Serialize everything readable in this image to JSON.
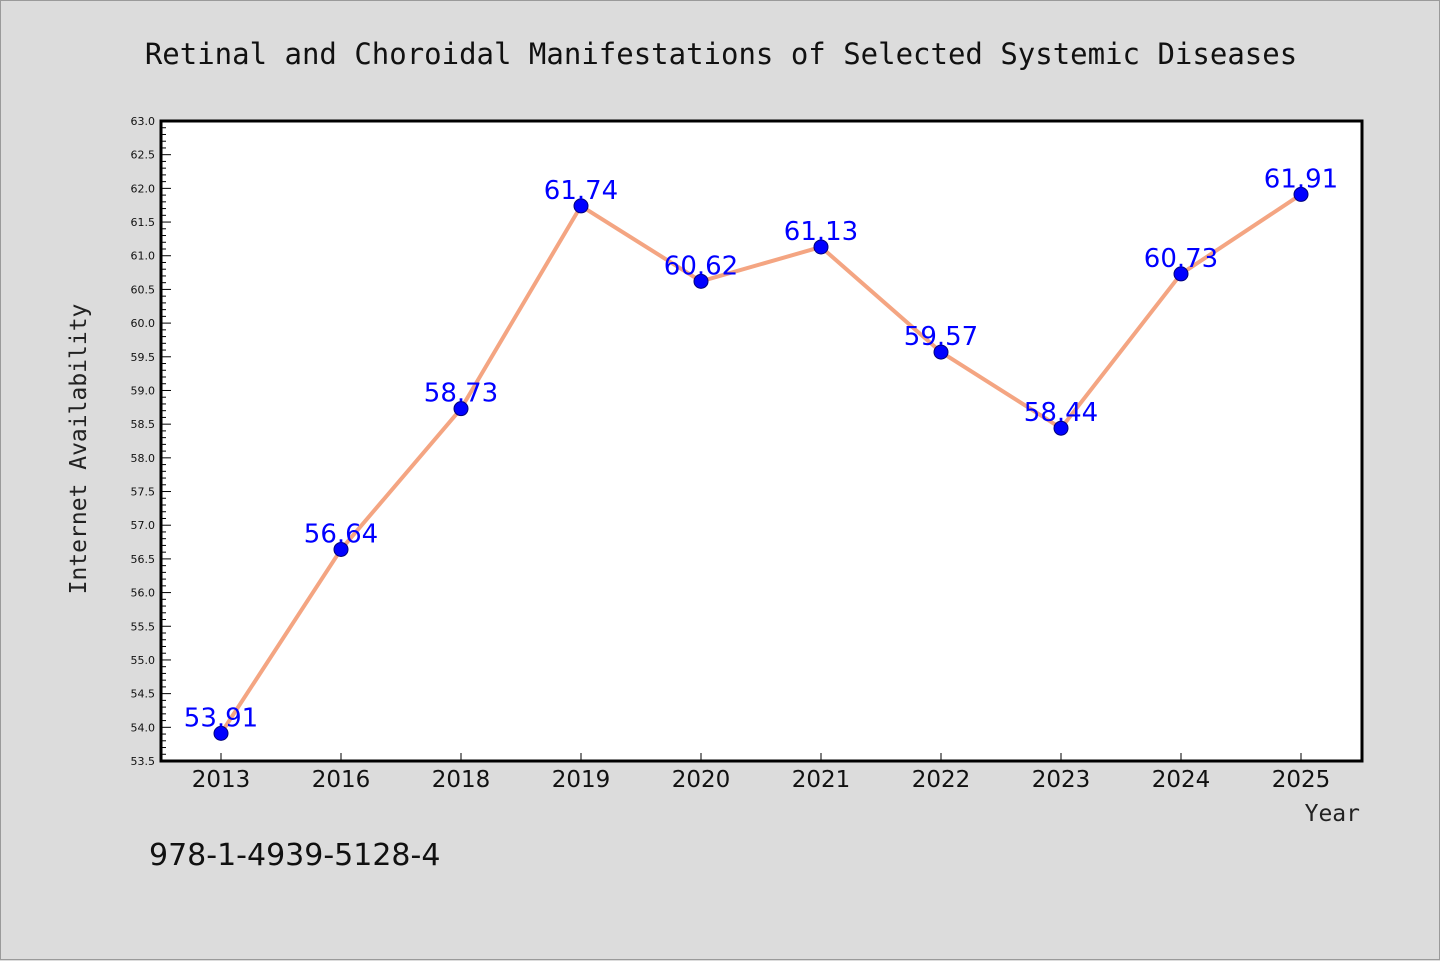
{
  "chart_data": {
    "type": "line",
    "title": "Retinal and Choroidal Manifestations of Selected Systemic Diseases",
    "xlabel": "Year",
    "ylabel": "Internet Availability",
    "categories": [
      "2013",
      "2016",
      "2018",
      "2019",
      "2020",
      "2021",
      "2022",
      "2023",
      "2024",
      "2025"
    ],
    "series": [
      {
        "values": [
          53.91,
          56.64,
          58.73,
          61.74,
          60.62,
          61.13,
          59.57,
          58.44,
          60.73,
          61.91
        ],
        "labels": [
          "53.91",
          "56.64",
          "58.73",
          "61.74",
          "60.62",
          "61.13",
          "59.57",
          "58.44",
          "60.73",
          "61.91"
        ]
      }
    ],
    "ylim": [
      53.5,
      63.0
    ],
    "yticks": [
      "53.5",
      "54.0",
      "54.5",
      "55.0",
      "55.5",
      "56.0",
      "56.5",
      "57.0",
      "57.5",
      "58.0",
      "58.5",
      "59.0",
      "59.5",
      "60.0",
      "60.5",
      "61.0",
      "61.5",
      "62.0",
      "62.5",
      "63.0"
    ],
    "grid": false,
    "legend": "none",
    "colors": {
      "line": "#f4a582",
      "marker": "#0000ff",
      "data_label": "#0000ff",
      "background": "#dcdcdc",
      "plot_area": "#ffffff"
    }
  },
  "annotation": {
    "isbn": "978-1-4939-5128-4"
  }
}
